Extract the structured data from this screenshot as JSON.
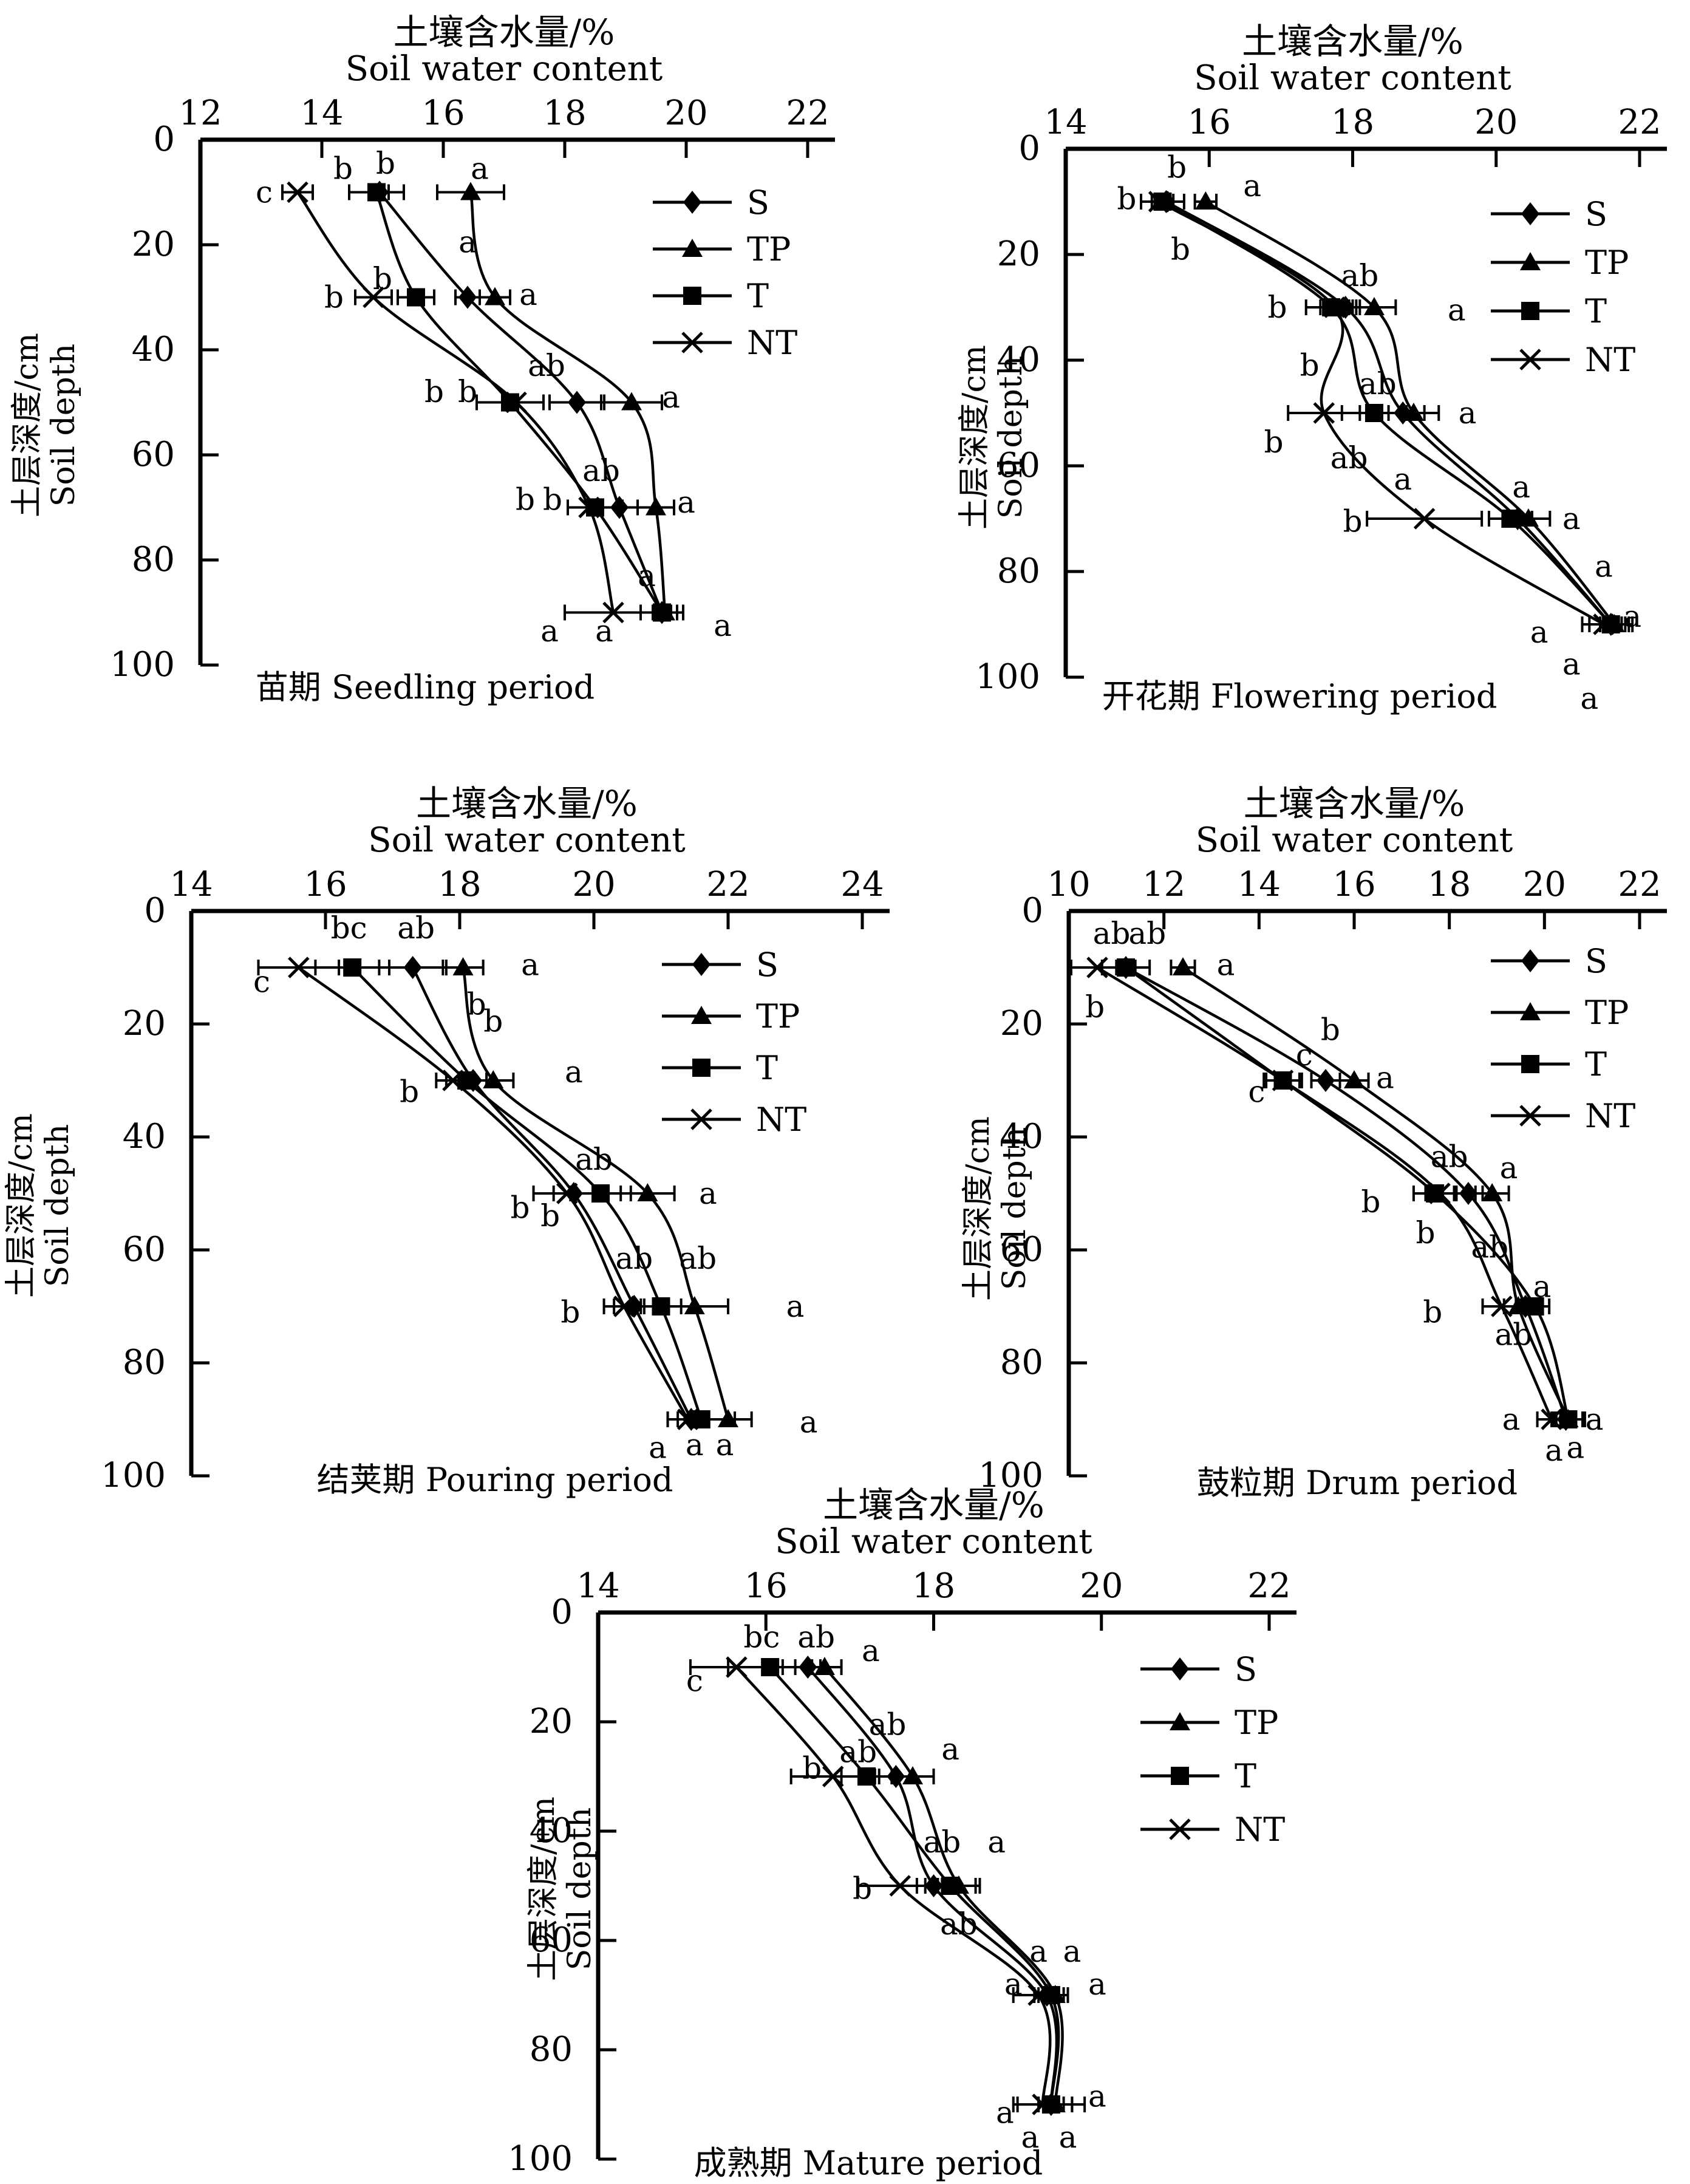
{
  "figure": {
    "background_color": "#ffffff",
    "ink_color": "#000000",
    "x_axis_title_zh": "土壤含水量/%",
    "x_axis_title_en": "Soil water content",
    "y_axis_title_zh": "土层深度/cm",
    "y_axis_title_en": "Soil depth",
    "legend_labels": [
      "S",
      "TP",
      "T",
      "NT"
    ],
    "legend_markers": [
      "diamond",
      "triangle",
      "square",
      "cross"
    ]
  },
  "chart_data": [
    {
      "id": "seedling",
      "type": "line",
      "title": "土壤含水量/%",
      "subtitle": "Soil water content",
      "ylabel": "土层深度/cm",
      "ylabel_en": "Soil depth",
      "caption": "苗期 Seedling period",
      "xlim": [
        12,
        22
      ],
      "x_ticks": [
        12,
        14,
        16,
        18,
        20,
        22
      ],
      "ylim": [
        0,
        100
      ],
      "y_ticks": [
        0,
        20,
        40,
        60,
        80,
        100
      ],
      "depths": [
        10,
        30,
        50,
        70,
        90
      ],
      "legend": [
        "S",
        "TP",
        "T",
        "NT"
      ],
      "series": [
        {
          "name": "S",
          "marker": "diamond",
          "values": [
            14.95,
            16.4,
            18.2,
            18.9,
            19.6
          ],
          "err": [
            0.15,
            0.2,
            0.45,
            0.3,
            0.15
          ]
        },
        {
          "name": "TP",
          "marker": "triangle",
          "values": [
            16.45,
            16.85,
            19.1,
            19.5,
            19.65
          ],
          "err": [
            0.55,
            0.25,
            0.5,
            0.3,
            0.2
          ]
        },
        {
          "name": "T",
          "marker": "square",
          "values": [
            14.9,
            15.55,
            17.1,
            18.5,
            19.6
          ],
          "err": [
            0.45,
            0.3,
            0.55,
            0.45,
            0.35
          ]
        },
        {
          "name": "NT",
          "marker": "cross",
          "values": [
            13.6,
            14.85,
            17.2,
            18.4,
            18.8
          ],
          "err": [
            0.25,
            0.3,
            0.0,
            0.0,
            0.8
          ]
        }
      ],
      "sig_labels": [
        {
          "t": "c",
          "x": 13.05,
          "d": 10
        },
        {
          "t": "b",
          "x": 14.35,
          "d": 5.5
        },
        {
          "t": "b",
          "x": 15.05,
          "d": 4.5
        },
        {
          "t": "a",
          "x": 16.6,
          "d": 5.5
        },
        {
          "t": "a",
          "x": 16.4,
          "d": 19.5
        },
        {
          "t": "b",
          "x": 14.2,
          "d": 30
        },
        {
          "t": "b",
          "x": 15.0,
          "d": 26.5
        },
        {
          "t": "a",
          "x": 17.4,
          "d": 29.5
        },
        {
          "t": "ab",
          "x": 17.7,
          "d": 43
        },
        {
          "t": "b",
          "x": 15.85,
          "d": 48
        },
        {
          "t": "b",
          "x": 16.4,
          "d": 48
        },
        {
          "t": "a",
          "x": 19.75,
          "d": 49
        },
        {
          "t": "ab",
          "x": 18.6,
          "d": 63
        },
        {
          "t": "b",
          "x": 17.35,
          "d": 68.5
        },
        {
          "t": "b",
          "x": 17.8,
          "d": 68.5
        },
        {
          "t": "a",
          "x": 20.0,
          "d": 69
        },
        {
          "t": "a",
          "x": 19.35,
          "d": 83
        },
        {
          "t": "a",
          "x": 17.75,
          "d": 93.5
        },
        {
          "t": "a",
          "x": 18.65,
          "d": 93.5
        },
        {
          "t": "a",
          "x": 20.6,
          "d": 92.5
        }
      ]
    },
    {
      "id": "flowering",
      "type": "line",
      "title": "土壤含水量/%",
      "subtitle": "Soil water content",
      "ylabel": "土层深度/cm",
      "ylabel_en": "Soil depth",
      "caption": "开花期 Flowering period",
      "xlim": [
        14,
        22
      ],
      "x_ticks": [
        14,
        16,
        18,
        20,
        22
      ],
      "ylim": [
        0,
        100
      ],
      "y_ticks": [
        0,
        20,
        40,
        60,
        80,
        100
      ],
      "depths": [
        10,
        30,
        50,
        70,
        90
      ],
      "legend": [
        "S",
        "TP",
        "T",
        "NT"
      ],
      "series": [
        {
          "name": "S",
          "marker": "diamond",
          "values": [
            15.4,
            17.9,
            18.7,
            20.3,
            21.6
          ],
          "err": [
            0.1,
            0.2,
            0.3,
            0.2,
            0.15
          ]
        },
        {
          "name": "TP",
          "marker": "triangle",
          "values": [
            15.95,
            18.3,
            18.85,
            20.45,
            21.65
          ],
          "err": [
            0.15,
            0.3,
            0.35,
            0.3,
            0.2
          ]
        },
        {
          "name": "T",
          "marker": "square",
          "values": [
            15.35,
            17.7,
            18.3,
            20.2,
            21.6
          ],
          "err": [
            0.3,
            0.35,
            0.45,
            0.3,
            0.3
          ]
        },
        {
          "name": "NT",
          "marker": "cross",
          "values": [
            15.3,
            17.75,
            17.6,
            19.0,
            21.5
          ],
          "err": [
            0.1,
            0.2,
            0.5,
            0.8,
            0.3
          ]
        }
      ],
      "sig_labels": [
        {
          "t": "b",
          "x": 15.55,
          "d": 3.5
        },
        {
          "t": "b",
          "x": 14.85,
          "d": 9.5
        },
        {
          "t": "a",
          "x": 16.6,
          "d": 7
        },
        {
          "t": "b",
          "x": 15.6,
          "d": 19
        },
        {
          "t": "ab",
          "x": 18.1,
          "d": 24
        },
        {
          "t": "b",
          "x": 16.95,
          "d": 30
        },
        {
          "t": "a",
          "x": 19.45,
          "d": 30.5
        },
        {
          "t": "b",
          "x": 17.4,
          "d": 41
        },
        {
          "t": "ab",
          "x": 18.35,
          "d": 44.5
        },
        {
          "t": "a",
          "x": 19.6,
          "d": 50
        },
        {
          "t": "b",
          "x": 16.9,
          "d": 55.5
        },
        {
          "t": "ab",
          "x": 17.95,
          "d": 58.5
        },
        {
          "t": "a",
          "x": 18.7,
          "d": 62.5
        },
        {
          "t": "b",
          "x": 18.0,
          "d": 70.5
        },
        {
          "t": "a",
          "x": 21.05,
          "d": 70
        },
        {
          "t": "a",
          "x": 20.35,
          "d": 64
        },
        {
          "t": "a",
          "x": 20.6,
          "d": 91.5
        },
        {
          "t": "a",
          "x": 21.9,
          "d": 88.5
        },
        {
          "t": "a",
          "x": 21.5,
          "d": 79
        },
        {
          "t": "a",
          "x": 21.05,
          "d": 97.5
        },
        {
          "t": "a",
          "x": 21.3,
          "d": 104
        }
      ]
    },
    {
      "id": "pouring",
      "type": "line",
      "title": "土壤含水量/%",
      "subtitle": "Soil water content",
      "ylabel": "土层深度/cm",
      "ylabel_en": "Soil depth",
      "caption": "结荚期  Pouring period",
      "xlim": [
        14,
        24
      ],
      "x_ticks": [
        14,
        16,
        18,
        20,
        22,
        24
      ],
      "ylim": [
        0,
        100
      ],
      "y_ticks": [
        0,
        20,
        40,
        60,
        80,
        100
      ],
      "depths": [
        10,
        30,
        50,
        70,
        90
      ],
      "legend": [
        "S",
        "TP",
        "T",
        "NT"
      ],
      "series": [
        {
          "name": "S",
          "marker": "diamond",
          "values": [
            17.3,
            18.2,
            19.7,
            20.6,
            21.45
          ],
          "err": [
            0.5,
            0.2,
            0.3,
            0.3,
            0.2
          ]
        },
        {
          "name": "TP",
          "marker": "triangle",
          "values": [
            18.05,
            18.5,
            20.8,
            21.5,
            22.0
          ],
          "err": [
            0.3,
            0.3,
            0.4,
            0.5,
            0.35
          ]
        },
        {
          "name": "T",
          "marker": "square",
          "values": [
            16.4,
            18.1,
            20.1,
            21.0,
            21.6
          ],
          "err": [
            0.55,
            0.3,
            0.45,
            0.3,
            0.5
          ]
        },
        {
          "name": "NT",
          "marker": "cross",
          "values": [
            15.6,
            17.9,
            19.6,
            20.45,
            21.4
          ],
          "err": [
            0.6,
            0.25,
            0.5,
            0.3,
            0.3
          ]
        }
      ],
      "sig_labels": [
        {
          "t": "bc",
          "x": 16.35,
          "d": 3
        },
        {
          "t": "ab",
          "x": 17.35,
          "d": 3
        },
        {
          "t": "c",
          "x": 15.05,
          "d": 12.5
        },
        {
          "t": "a",
          "x": 19.05,
          "d": 9.5
        },
        {
          "t": "b",
          "x": 18.25,
          "d": 16.5
        },
        {
          "t": "b",
          "x": 18.5,
          "d": 19.5
        },
        {
          "t": "b",
          "x": 17.25,
          "d": 32
        },
        {
          "t": "a",
          "x": 19.7,
          "d": 28.5
        },
        {
          "t": "ab",
          "x": 20.0,
          "d": 44
        },
        {
          "t": "b",
          "x": 18.9,
          "d": 52.5
        },
        {
          "t": "b",
          "x": 19.35,
          "d": 54
        },
        {
          "t": "a",
          "x": 21.7,
          "d": 50
        },
        {
          "t": "ab",
          "x": 20.6,
          "d": 61.5
        },
        {
          "t": "ab",
          "x": 21.55,
          "d": 61.5
        },
        {
          "t": "b",
          "x": 19.65,
          "d": 71
        },
        {
          "t": "a",
          "x": 23.0,
          "d": 70
        },
        {
          "t": "a",
          "x": 20.95,
          "d": 95
        },
        {
          "t": "a",
          "x": 21.5,
          "d": 94.5
        },
        {
          "t": "a",
          "x": 21.95,
          "d": 94.5
        },
        {
          "t": "a",
          "x": 23.2,
          "d": 90.5
        }
      ]
    },
    {
      "id": "drum",
      "type": "line",
      "title": "土壤含水量/%",
      "subtitle": "Soil water content",
      "ylabel": "土层深度/cm",
      "ylabel_en": "Soil depth",
      "caption": "鼓粒期 Drum period",
      "xlim": [
        10,
        22
      ],
      "x_ticks": [
        10,
        12,
        14,
        16,
        18,
        20,
        22
      ],
      "ylim": [
        0,
        100
      ],
      "y_ticks": [
        0,
        20,
        40,
        60,
        80,
        100
      ],
      "depths": [
        10,
        30,
        50,
        70,
        90
      ],
      "legend": [
        "S",
        "TP",
        "T",
        "NT"
      ],
      "series": [
        {
          "name": "S",
          "marker": "diamond",
          "values": [
            11.2,
            15.4,
            18.4,
            19.6,
            20.45
          ],
          "err": [
            0.2,
            0.3,
            0.3,
            0.2,
            0.2
          ]
        },
        {
          "name": "TP",
          "marker": "triangle",
          "values": [
            12.4,
            16.0,
            18.9,
            19.45,
            20.5
          ],
          "err": [
            0.25,
            0.3,
            0.35,
            0.3,
            0.3
          ]
        },
        {
          "name": "T",
          "marker": "square",
          "values": [
            11.2,
            14.5,
            17.7,
            19.8,
            20.5
          ],
          "err": [
            0.5,
            0.4,
            0.45,
            0.3,
            0.35
          ]
        },
        {
          "name": "NT",
          "marker": "cross",
          "values": [
            10.6,
            14.5,
            17.8,
            19.1,
            20.15
          ],
          "err": [
            0.55,
            0.35,
            0.3,
            0.4,
            0.3
          ]
        }
      ],
      "sig_labels": [
        {
          "t": "ab",
          "x": 10.9,
          "d": 4
        },
        {
          "t": "ab",
          "x": 11.65,
          "d": 4
        },
        {
          "t": "a",
          "x": 13.3,
          "d": 9.5
        },
        {
          "t": "b",
          "x": 10.55,
          "d": 17
        },
        {
          "t": "b",
          "x": 15.5,
          "d": 21
        },
        {
          "t": "c",
          "x": 14.95,
          "d": 25.5
        },
        {
          "t": "c",
          "x": 13.95,
          "d": 32
        },
        {
          "t": "a",
          "x": 16.65,
          "d": 29.5
        },
        {
          "t": "ab",
          "x": 18.0,
          "d": 43.5
        },
        {
          "t": "a",
          "x": 19.25,
          "d": 45.5
        },
        {
          "t": "b",
          "x": 16.35,
          "d": 51.5
        },
        {
          "t": "b",
          "x": 17.5,
          "d": 57
        },
        {
          "t": "ab",
          "x": 18.85,
          "d": 59.5
        },
        {
          "t": "a",
          "x": 19.95,
          "d": 66.5
        },
        {
          "t": "b",
          "x": 17.65,
          "d": 71
        },
        {
          "t": "ab",
          "x": 19.35,
          "d": 75
        },
        {
          "t": "a",
          "x": 19.3,
          "d": 90
        },
        {
          "t": "a",
          "x": 21.05,
          "d": 90
        },
        {
          "t": "a",
          "x": 20.2,
          "d": 95.5
        },
        {
          "t": "a",
          "x": 20.65,
          "d": 95
        }
      ]
    },
    {
      "id": "mature",
      "type": "line",
      "title": "土壤含水量/%",
      "subtitle": "Soil water content",
      "ylabel": "土层深度/cm",
      "ylabel_en": "Soil depth",
      "caption": "成熟期 Mature period",
      "xlim": [
        14,
        22
      ],
      "x_ticks": [
        14,
        16,
        18,
        20,
        22
      ],
      "ylim": [
        0,
        100
      ],
      "y_ticks": [
        0,
        20,
        40,
        60,
        80,
        100
      ],
      "depths": [
        10,
        30,
        50,
        70,
        90
      ],
      "legend": [
        "S",
        "TP",
        "T",
        "NT"
      ],
      "series": [
        {
          "name": "S",
          "marker": "diamond",
          "values": [
            16.5,
            17.55,
            18.0,
            19.35,
            19.4
          ],
          "err": [
            0.15,
            0.2,
            0.2,
            0.1,
            0.15
          ]
        },
        {
          "name": "TP",
          "marker": "triangle",
          "values": [
            16.7,
            17.75,
            18.3,
            19.45,
            19.45
          ],
          "err": [
            0.2,
            0.25,
            0.25,
            0.15,
            0.2
          ]
        },
        {
          "name": "T",
          "marker": "square",
          "values": [
            16.05,
            17.2,
            18.2,
            19.4,
            19.4
          ],
          "err": [
            0.5,
            0.3,
            0.3,
            0.2,
            0.4
          ]
        },
        {
          "name": "NT",
          "marker": "cross",
          "values": [
            15.65,
            16.8,
            17.6,
            19.25,
            19.3
          ],
          "err": [
            0.55,
            0.5,
            0.5,
            0.3,
            0.35
          ]
        }
      ],
      "sig_labels": [
        {
          "t": "bc",
          "x": 15.95,
          "d": 4.5
        },
        {
          "t": "ab",
          "x": 16.6,
          "d": 4.5
        },
        {
          "t": "a",
          "x": 17.25,
          "d": 7
        },
        {
          "t": "c",
          "x": 15.15,
          "d": 12.5
        },
        {
          "t": "ab",
          "x": 17.45,
          "d": 20.5
        },
        {
          "t": "ab",
          "x": 17.1,
          "d": 25.5
        },
        {
          "t": "a",
          "x": 18.2,
          "d": 25
        },
        {
          "t": "b",
          "x": 16.55,
          "d": 28.5
        },
        {
          "t": "ab",
          "x": 18.1,
          "d": 42
        },
        {
          "t": "a",
          "x": 18.75,
          "d": 42
        },
        {
          "t": "b",
          "x": 17.15,
          "d": 50.5
        },
        {
          "t": "ab",
          "x": 18.3,
          "d": 57
        },
        {
          "t": "a",
          "x": 19.25,
          "d": 62
        },
        {
          "t": "a",
          "x": 19.65,
          "d": 62
        },
        {
          "t": "a",
          "x": 18.95,
          "d": 68
        },
        {
          "t": "a",
          "x": 19.95,
          "d": 68
        },
        {
          "t": "a",
          "x": 18.85,
          "d": 91.5
        },
        {
          "t": "a",
          "x": 19.95,
          "d": 88.5
        },
        {
          "t": "a",
          "x": 19.15,
          "d": 96
        },
        {
          "t": "a",
          "x": 19.6,
          "d": 96
        }
      ]
    }
  ]
}
